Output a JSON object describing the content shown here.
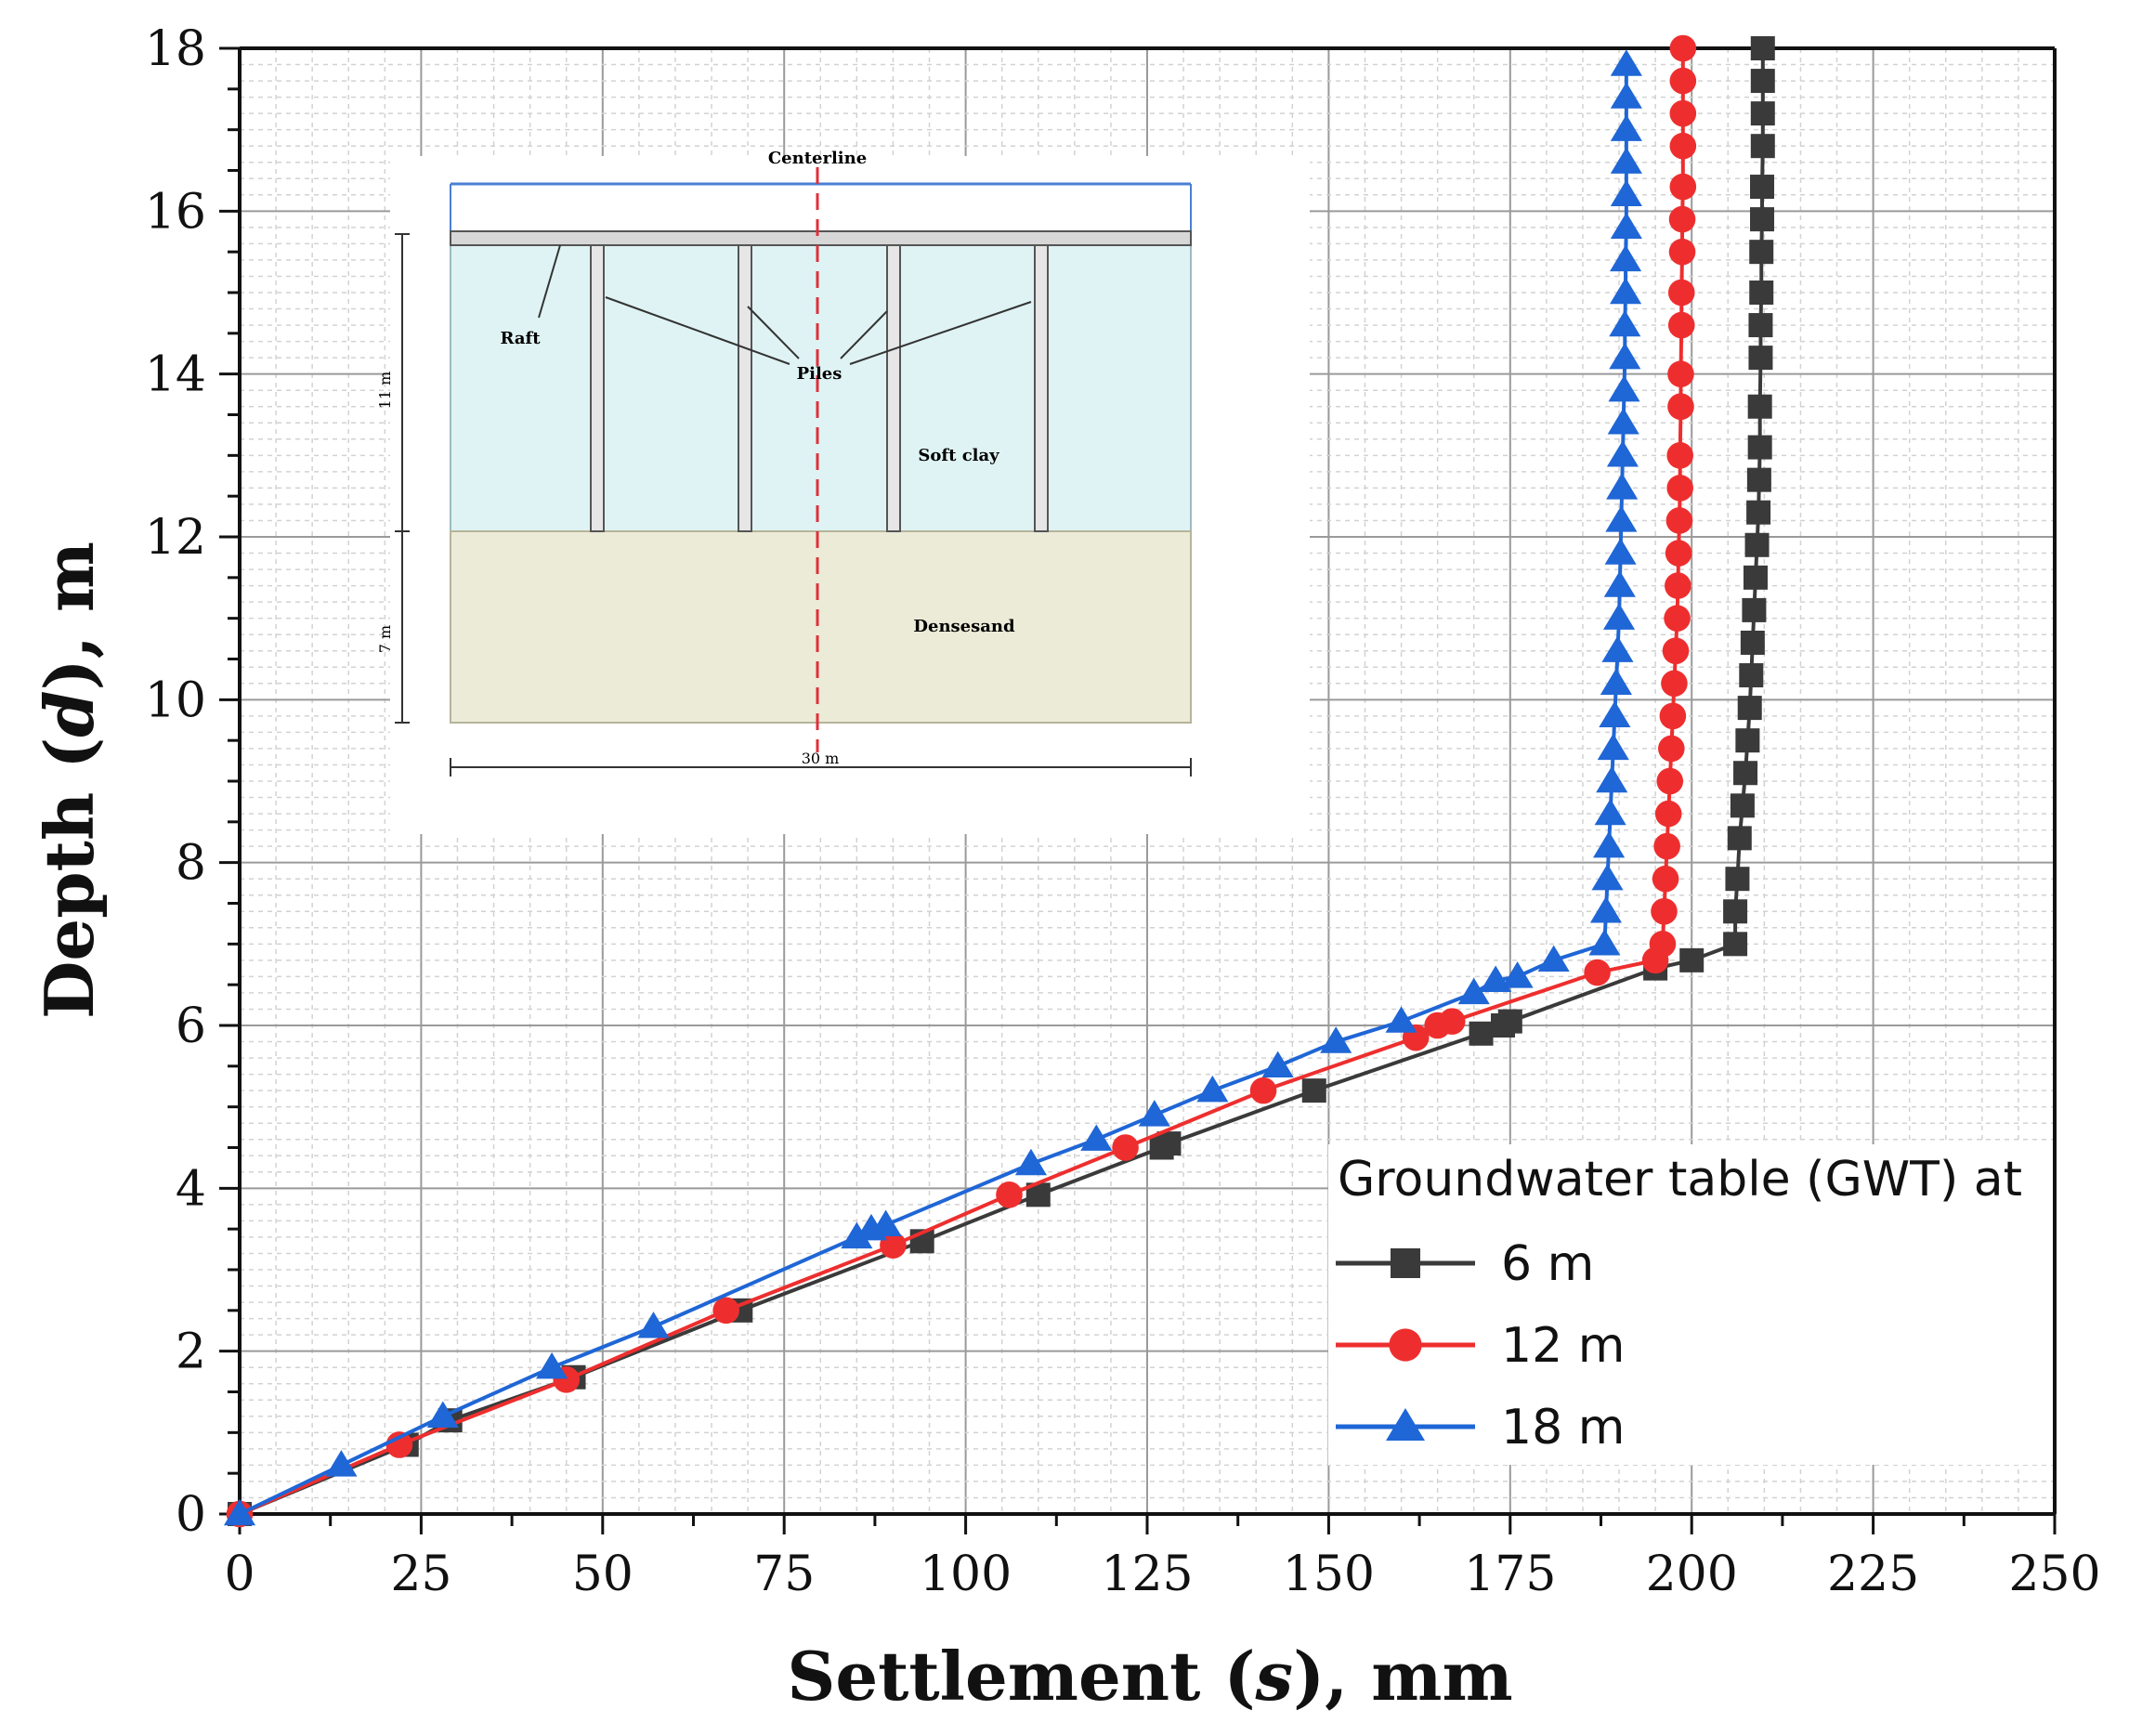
{
  "chart_data": {
    "type": "line",
    "xlabel_parts": [
      "Settlement (",
      "s",
      "), mm"
    ],
    "ylabel_parts": [
      "Depth (",
      "d",
      "), m"
    ],
    "xlim": [
      0,
      250
    ],
    "ylim": [
      0,
      18
    ],
    "xticks": [
      "0",
      "25",
      "50",
      "75",
      "100",
      "125",
      "150",
      "175",
      "200",
      "225",
      "250"
    ],
    "yticks": [
      "0",
      "2",
      "4",
      "6",
      "8",
      "10",
      "12",
      "14",
      "16",
      "18"
    ],
    "grid": true,
    "legend": {
      "title": "Groundwater table (GWT) at",
      "position": "bottom-right",
      "entries": [
        "6 m",
        "12 m",
        "18 m"
      ]
    },
    "series": [
      {
        "name": "6 m",
        "color": "#3a3a3a",
        "marker": "square",
        "points": [
          [
            0,
            0
          ],
          [
            23,
            0.85
          ],
          [
            29,
            1.15
          ],
          [
            46,
            1.68
          ],
          [
            69,
            2.5
          ],
          [
            94,
            3.35
          ],
          [
            110,
            3.92
          ],
          [
            127,
            4.5
          ],
          [
            128,
            4.55
          ],
          [
            148,
            5.2
          ],
          [
            171,
            5.9
          ],
          [
            174,
            6.0
          ],
          [
            175,
            6.05
          ],
          [
            195,
            6.7
          ],
          [
            200,
            6.8
          ],
          [
            206,
            7.0
          ],
          [
            206,
            7.4
          ],
          [
            206.3,
            7.8
          ],
          [
            206.6,
            8.3
          ],
          [
            207,
            8.7
          ],
          [
            207.4,
            9.1
          ],
          [
            207.7,
            9.5
          ],
          [
            208,
            9.9
          ],
          [
            208.2,
            10.3
          ],
          [
            208.4,
            10.7
          ],
          [
            208.6,
            11.1
          ],
          [
            208.8,
            11.5
          ],
          [
            209,
            11.9
          ],
          [
            209.2,
            12.3
          ],
          [
            209.3,
            12.7
          ],
          [
            209.4,
            13.1
          ],
          [
            209.4,
            13.6
          ],
          [
            209.5,
            14.2
          ],
          [
            209.5,
            14.6
          ],
          [
            209.6,
            15.0
          ],
          [
            209.6,
            15.5
          ],
          [
            209.7,
            15.9
          ],
          [
            209.7,
            16.3
          ],
          [
            209.8,
            16.8
          ],
          [
            209.8,
            17.2
          ],
          [
            209.8,
            17.6
          ],
          [
            209.8,
            18.0
          ]
        ]
      },
      {
        "name": "12 m",
        "color": "#ee2e2e",
        "marker": "circle",
        "points": [
          [
            0,
            0
          ],
          [
            22,
            0.85
          ],
          [
            45,
            1.65
          ],
          [
            67,
            2.5
          ],
          [
            90,
            3.3
          ],
          [
            106,
            3.92
          ],
          [
            122,
            4.5
          ],
          [
            141,
            5.2
          ],
          [
            162,
            5.85
          ],
          [
            165,
            6.0
          ],
          [
            167,
            6.05
          ],
          [
            187,
            6.65
          ],
          [
            195,
            6.8
          ],
          [
            196,
            7.0
          ],
          [
            196.2,
            7.4
          ],
          [
            196.4,
            7.8
          ],
          [
            196.6,
            8.2
          ],
          [
            196.8,
            8.6
          ],
          [
            197,
            9.0
          ],
          [
            197.2,
            9.4
          ],
          [
            197.4,
            9.8
          ],
          [
            197.6,
            10.2
          ],
          [
            197.8,
            10.6
          ],
          [
            198,
            11.0
          ],
          [
            198.1,
            11.4
          ],
          [
            198.2,
            11.8
          ],
          [
            198.3,
            12.2
          ],
          [
            198.4,
            12.6
          ],
          [
            198.4,
            13.0
          ],
          [
            198.5,
            13.6
          ],
          [
            198.5,
            14.0
          ],
          [
            198.6,
            14.6
          ],
          [
            198.6,
            15.0
          ],
          [
            198.7,
            15.5
          ],
          [
            198.7,
            15.9
          ],
          [
            198.8,
            16.3
          ],
          [
            198.8,
            16.8
          ],
          [
            198.8,
            17.2
          ],
          [
            198.8,
            17.6
          ],
          [
            198.8,
            18.0
          ]
        ]
      },
      {
        "name": "18 m",
        "color": "#1f66d6",
        "marker": "triangle",
        "points": [
          [
            0,
            0
          ],
          [
            14,
            0.6
          ],
          [
            28,
            1.2
          ],
          [
            43,
            1.8
          ],
          [
            57,
            2.3
          ],
          [
            85,
            3.4
          ],
          [
            87,
            3.5
          ],
          [
            89,
            3.55
          ],
          [
            109,
            4.3
          ],
          [
            118,
            4.6
          ],
          [
            126,
            4.9
          ],
          [
            134,
            5.2
          ],
          [
            143,
            5.5
          ],
          [
            151,
            5.8
          ],
          [
            160,
            6.05
          ],
          [
            170,
            6.4
          ],
          [
            173,
            6.55
          ],
          [
            176,
            6.6
          ],
          [
            181,
            6.8
          ],
          [
            188,
            7.0
          ],
          [
            188.2,
            7.4
          ],
          [
            188.4,
            7.8
          ],
          [
            188.6,
            8.2
          ],
          [
            188.8,
            8.6
          ],
          [
            189,
            9.0
          ],
          [
            189.2,
            9.4
          ],
          [
            189.4,
            9.8
          ],
          [
            189.6,
            10.2
          ],
          [
            189.8,
            10.6
          ],
          [
            190,
            11.0
          ],
          [
            190.1,
            11.4
          ],
          [
            190.2,
            11.8
          ],
          [
            190.3,
            12.2
          ],
          [
            190.4,
            12.6
          ],
          [
            190.5,
            13.0
          ],
          [
            190.6,
            13.4
          ],
          [
            190.7,
            13.8
          ],
          [
            190.8,
            14.2
          ],
          [
            190.8,
            14.6
          ],
          [
            190.9,
            15.0
          ],
          [
            190.9,
            15.4
          ],
          [
            191,
            15.8
          ],
          [
            191,
            16.2
          ],
          [
            191,
            16.6
          ],
          [
            191,
            17.0
          ],
          [
            191,
            17.4
          ],
          [
            191,
            17.8
          ]
        ]
      }
    ],
    "inset": {
      "centerline": "Centerline",
      "raft": "Raft",
      "piles": "Piles",
      "soft_clay": "Soft clay",
      "dense_sand": "Densesand",
      "dim_11": "11 m",
      "dim_7": "7 m",
      "dim_30": "30 m"
    }
  }
}
